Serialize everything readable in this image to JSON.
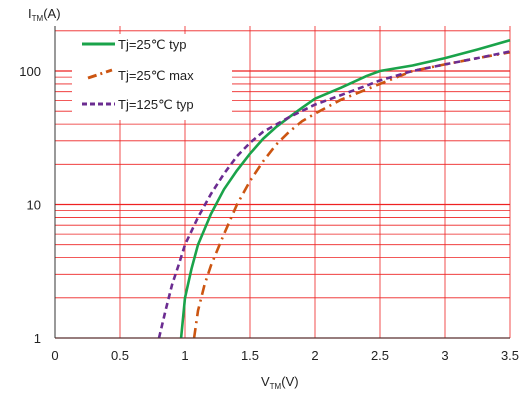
{
  "chart_data": {
    "type": "line",
    "ylabel": {
      "main": "I",
      "sub": "TM",
      "unit": "(A)"
    },
    "xlabel": {
      "main": "V",
      "sub": "TM",
      "unit": "(V)"
    },
    "xlim": [
      0,
      3.5
    ],
    "ylim": [
      1,
      200
    ],
    "yscale": "log",
    "grid": true,
    "legend_position": "top-left",
    "x_ticks": [
      "0",
      "0.5",
      "1",
      "1.5",
      "2",
      "2.5",
      "3",
      "3.5"
    ],
    "y_ticks": [
      "1",
      "10",
      "100"
    ],
    "colors": {
      "grid": "#ee2222",
      "background": "#ffffff"
    },
    "series": [
      {
        "name": "Tj=25℃ typ",
        "color": "#1aa34a",
        "style": "solid",
        "points": [
          [
            0.97,
            1
          ],
          [
            1.0,
            2
          ],
          [
            1.05,
            3.3
          ],
          [
            1.1,
            5
          ],
          [
            1.2,
            8.5
          ],
          [
            1.3,
            13
          ],
          [
            1.4,
            18
          ],
          [
            1.5,
            24
          ],
          [
            1.6,
            31
          ],
          [
            1.7,
            38
          ],
          [
            1.8,
            45
          ],
          [
            1.9,
            53
          ],
          [
            2.0,
            62
          ],
          [
            2.2,
            75
          ],
          [
            2.4,
            92
          ],
          [
            2.5,
            100
          ],
          [
            2.75,
            110
          ],
          [
            3.0,
            125
          ],
          [
            3.25,
            145
          ],
          [
            3.5,
            170
          ]
        ]
      },
      {
        "name": "Tj=25℃ max",
        "color": "#cc5511",
        "style": "dashdot",
        "points": [
          [
            1.07,
            1
          ],
          [
            1.1,
            1.6
          ],
          [
            1.15,
            2.5
          ],
          [
            1.2,
            3.5
          ],
          [
            1.3,
            6
          ],
          [
            1.4,
            10
          ],
          [
            1.5,
            15
          ],
          [
            1.6,
            21
          ],
          [
            1.7,
            28
          ],
          [
            1.8,
            35
          ],
          [
            1.9,
            42
          ],
          [
            2.0,
            48
          ],
          [
            2.2,
            61
          ],
          [
            2.4,
            73
          ],
          [
            2.5,
            80
          ],
          [
            2.75,
            100
          ],
          [
            3.0,
            112
          ],
          [
            3.25,
            125
          ],
          [
            3.5,
            138
          ]
        ]
      },
      {
        "name": "Tj=125℃ typ",
        "color": "#6b2c91",
        "style": "dashed",
        "points": [
          [
            0.8,
            1
          ],
          [
            0.85,
            1.6
          ],
          [
            0.9,
            2.5
          ],
          [
            0.95,
            3.5
          ],
          [
            1.0,
            5
          ],
          [
            1.1,
            8
          ],
          [
            1.2,
            12
          ],
          [
            1.3,
            17
          ],
          [
            1.4,
            23
          ],
          [
            1.5,
            29
          ],
          [
            1.6,
            35
          ],
          [
            1.8,
            45
          ],
          [
            2.0,
            56
          ],
          [
            2.2,
            66
          ],
          [
            2.4,
            78
          ],
          [
            2.5,
            85
          ],
          [
            2.75,
            100
          ],
          [
            3.0,
            112
          ],
          [
            3.25,
            125
          ],
          [
            3.5,
            140
          ]
        ]
      }
    ]
  }
}
